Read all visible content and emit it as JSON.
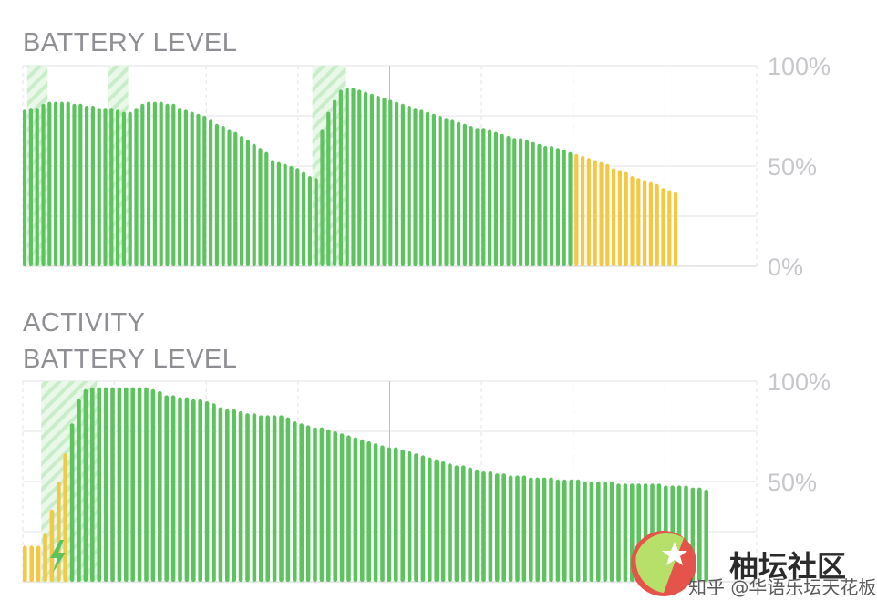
{
  "headings": {
    "chart1_title": "BATTERY LEVEL",
    "activity_title": "ACTIVITY",
    "chart2_title": "BATTERY LEVEL"
  },
  "colors": {
    "green": "#5dc35f",
    "yellow": "#f5c842",
    "charging_hatch": "#8fd68f",
    "grid": "#e3e3e8",
    "label": "#c7c7cc"
  },
  "watermark": {
    "name": "柚坛社区",
    "sub": "知乎 @华语乐坛天花板"
  },
  "chart_data": [
    {
      "type": "bar",
      "title": "BATTERY LEVEL",
      "y_tick_labels": [
        "100%",
        "50%",
        "0%"
      ],
      "ylim": [
        0,
        100
      ],
      "grid": true,
      "values": [
        78,
        79,
        79,
        81,
        82,
        82,
        82,
        82,
        81,
        81,
        80,
        80,
        79,
        79,
        79,
        78,
        77,
        77,
        79,
        81,
        82,
        82,
        82,
        81,
        81,
        79,
        78,
        77,
        76,
        75,
        73,
        71,
        70,
        68,
        67,
        65,
        63,
        61,
        59,
        57,
        53,
        52,
        51,
        50,
        49,
        47,
        45,
        44,
        68,
        77,
        83,
        88,
        89,
        89,
        88,
        87,
        86,
        85,
        84,
        83,
        82,
        81,
        80,
        79,
        78,
        77,
        76,
        75,
        74,
        73,
        72,
        71,
        70,
        69,
        69,
        68,
        67,
        66,
        65,
        64,
        64,
        63,
        62,
        61,
        60,
        60,
        59,
        58,
        57,
        56,
        55,
        54,
        53,
        52,
        51,
        49,
        48,
        47,
        45,
        44,
        43,
        42,
        41,
        39,
        38,
        37
      ],
      "low_power_mode_from_bar": 89,
      "charging_periods": [
        [
          1,
          3
        ],
        [
          14,
          16
        ],
        [
          47,
          51
        ]
      ]
    },
    {
      "type": "bar",
      "title": "BATTERY LEVEL",
      "y_tick_labels": [
        "100%",
        "50%"
      ],
      "ylim": [
        0,
        100
      ],
      "grid": true,
      "values": [
        18,
        18,
        18,
        24,
        36,
        50,
        64,
        79,
        91,
        96,
        97,
        97,
        97,
        97,
        97,
        97,
        97,
        97,
        97,
        96,
        95,
        93,
        93,
        92,
        92,
        91,
        91,
        90,
        89,
        87,
        86,
        86,
        85,
        84,
        84,
        83,
        83,
        83,
        83,
        82,
        80,
        79,
        78,
        77,
        77,
        76,
        75,
        74,
        73,
        72,
        71,
        70,
        69,
        68,
        67,
        67,
        66,
        65,
        64,
        63,
        62,
        61,
        60,
        59,
        58,
        58,
        57,
        56,
        55,
        55,
        54,
        54,
        53,
        53,
        53,
        52,
        52,
        52,
        52,
        51,
        51,
        51,
        51,
        50,
        50,
        50,
        50,
        50,
        49,
        49,
        49,
        49,
        49,
        49,
        49,
        48,
        48,
        48,
        48,
        47,
        47,
        46
      ],
      "yellow_bars_until": 7,
      "charging_period": [
        3,
        10
      ]
    }
  ]
}
